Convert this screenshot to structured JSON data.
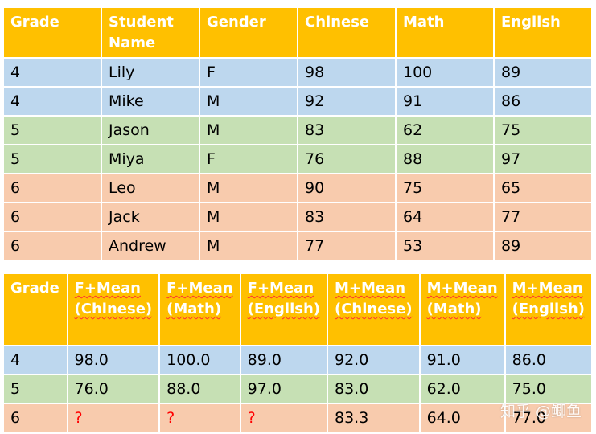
{
  "table1": {
    "headers": [
      "Grade",
      "Student Name",
      "Gender",
      "Chinese",
      "Math",
      "English"
    ],
    "rows": [
      [
        "4",
        "Lily",
        "F",
        "98",
        "100",
        "89"
      ],
      [
        "4",
        "Mike",
        "M",
        "92",
        "91",
        "86"
      ],
      [
        "5",
        "Jason",
        "M",
        "83",
        "62",
        "75"
      ],
      [
        "5",
        "Miya",
        "F",
        "76",
        "88",
        "97"
      ],
      [
        "6",
        "Leo",
        "M",
        "90",
        "75",
        "65"
      ],
      [
        "6",
        "Jack",
        "M",
        "83",
        "64",
        "77"
      ],
      [
        "6",
        "Andrew",
        "M",
        "77",
        "53",
        "89"
      ]
    ]
  },
  "table2": {
    "headers": [
      "Grade",
      "F+Mean (Chinese)",
      "F+Mean (Math)",
      "F+Mean (English)",
      "M+Mean (Chinese)",
      "M+Mean (Math)",
      "M+Mean (English)"
    ],
    "rows": [
      [
        "4",
        "98.0",
        "100.0",
        "89.0",
        "92.0",
        "91.0",
        "86.0"
      ],
      [
        "5",
        "76.0",
        "88.0",
        "97.0",
        "83.0",
        "62.0",
        "75.0"
      ],
      [
        "6",
        "?",
        "?",
        "?",
        "83.3",
        "64.0",
        "77.0"
      ]
    ]
  },
  "colors": {
    "header": "#FFC000",
    "grade4": "#BDD7EE",
    "grade5": "#C6E0B4",
    "grade6": "#F8CBAD",
    "missing": "#FF0000"
  },
  "watermark": "知乎 @鲫鱼"
}
